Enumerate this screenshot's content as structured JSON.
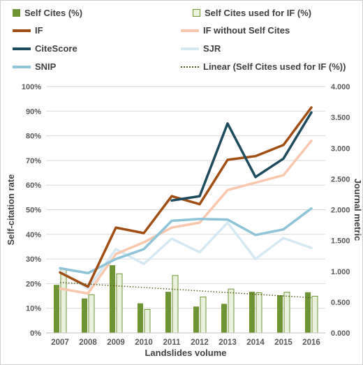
{
  "chart_data": {
    "type": "bar+line",
    "categories": [
      "2007",
      "2008",
      "2009",
      "2010",
      "2011",
      "2012",
      "2013",
      "2014",
      "2015",
      "2016"
    ],
    "xlabel": "Landslides volume",
    "ylabel_left": "Self-citation rate",
    "ylabel_right": "Journal metric",
    "ylim_left": [
      0,
      100
    ],
    "ylim_right": [
      0,
      4
    ],
    "left_ticks": [
      "0%",
      "10%",
      "20%",
      "30%",
      "40%",
      "50%",
      "60%",
      "70%",
      "80%",
      "90%",
      "100%"
    ],
    "right_ticks": [
      "0.000",
      "0.500",
      "1.000",
      "1.500",
      "2.000",
      "2.500",
      "3.000",
      "3.500",
      "4.000"
    ],
    "grid": "horizontal",
    "legend_position": "top",
    "bar_series": [
      {
        "name": "Self Cites (%)",
        "axis": "left",
        "color": "#6f9436",
        "values": [
          19.5,
          14,
          27.5,
          12,
          16.7,
          10.7,
          11.8,
          16.7,
          15.3,
          16.5
        ]
      },
      {
        "name": "Self Cites used for IF (%)",
        "axis": "left",
        "color": "#eaf1dd",
        "stroke": "#6f9436",
        "values": [
          26,
          15.5,
          24,
          9.5,
          23.3,
          14.6,
          17.8,
          16.3,
          16.5,
          14.9
        ]
      }
    ],
    "line_series": [
      {
        "name": "IF",
        "axis": "right",
        "color": "#a04e14",
        "values": [
          0.98,
          0.75,
          1.71,
          1.62,
          2.22,
          2.09,
          2.81,
          2.87,
          3.05,
          3.66
        ]
      },
      {
        "name": "IF without Self Cites",
        "axis": "right",
        "color": "#f9c7ae",
        "values": [
          0.72,
          0.64,
          1.28,
          1.47,
          1.71,
          1.79,
          2.32,
          2.44,
          2.56,
          3.12
        ]
      },
      {
        "name": "CiteScore",
        "axis": "right",
        "color": "#1f4b5e",
        "values": [
          null,
          null,
          null,
          null,
          2.15,
          2.22,
          3.4,
          2.53,
          2.83,
          3.58
        ]
      },
      {
        "name": "SJR",
        "axis": "right",
        "color": "#d6e9f3",
        "values": [
          1.0,
          0.72,
          1.36,
          1.12,
          1.53,
          1.31,
          1.79,
          1.2,
          1.54,
          1.38
        ]
      },
      {
        "name": "SNIP",
        "axis": "right",
        "color": "#8ec3d8",
        "values": [
          1.05,
          0.97,
          1.2,
          1.36,
          1.82,
          1.85,
          1.84,
          1.59,
          1.68,
          2.02
        ]
      }
    ],
    "trendline": {
      "name": "Linear (Self Cites used for IF (%))",
      "axis": "left",
      "color": "#555b1a",
      "start": 20.5,
      "end": 14.3
    }
  },
  "legend": {
    "self_cites": "Self Cites (%)",
    "self_cites_if": "Self Cites used for IF (%)",
    "if": "IF",
    "if_without": "IF without Self Cites",
    "citescore": "CiteScore",
    "sjr": "SJR",
    "snip": "SNIP",
    "linear": "Linear (Self Cites used for IF (%))"
  }
}
